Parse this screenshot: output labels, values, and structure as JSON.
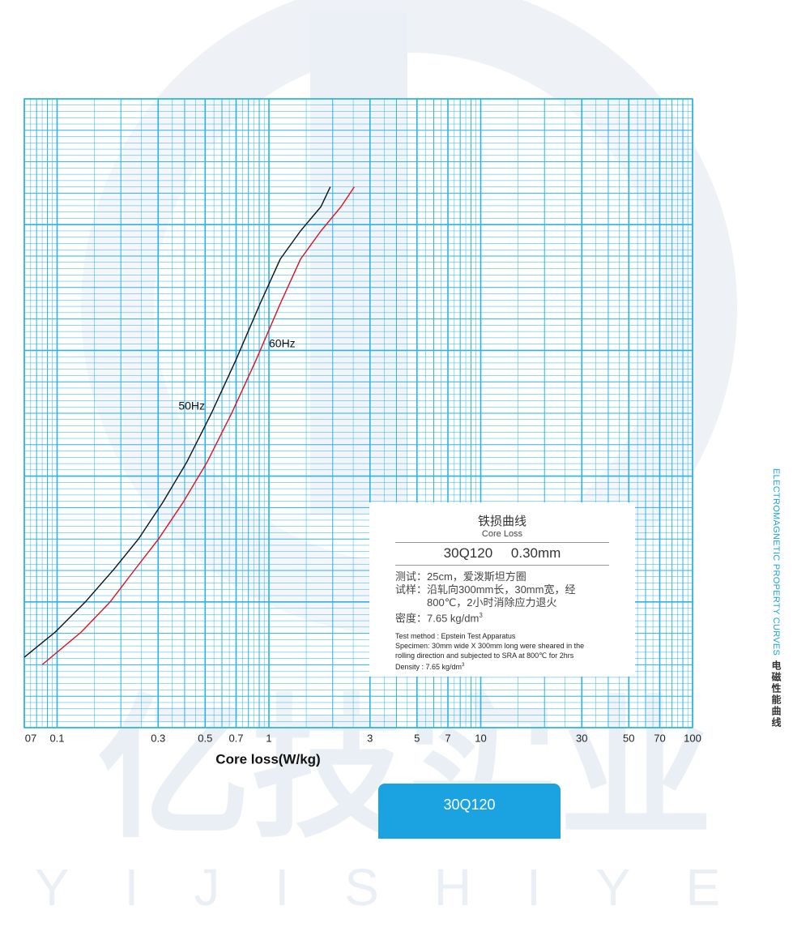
{
  "chart_data": {
    "type": "line",
    "x_label": "Core loss(W/kg)",
    "xscale": "log",
    "xlim": [
      0.07,
      100
    ],
    "xticks": [
      {
        "value": 0.07,
        "label": "07"
      },
      0.1,
      0.3,
      0.5,
      0.7,
      1,
      3,
      5,
      7,
      10,
      30,
      50,
      70,
      100
    ],
    "ylim": [
      0,
      2
    ],
    "grid": true,
    "grid_color": "#2bb3e6",
    "series": [
      {
        "name": "50Hz",
        "color": "#111111",
        "x": [
          0.07,
          0.098,
          0.136,
          0.185,
          0.242,
          0.315,
          0.41,
          0.535,
          0.697,
          0.908,
          1.13,
          1.41,
          1.76,
          1.95
        ],
        "values": [
          0.224,
          0.304,
          0.4,
          0.503,
          0.6,
          0.716,
          0.845,
          1.0,
          1.168,
          1.348,
          1.49,
          1.58,
          1.657,
          1.72
        ]
      },
      {
        "name": "60Hz",
        "color": "#e0101a",
        "x": [
          0.0853,
          0.13,
          0.178,
          0.231,
          0.301,
          0.393,
          0.511,
          0.667,
          0.868,
          1.13,
          1.41,
          1.76,
          2.19,
          2.53
        ],
        "values": [
          0.201,
          0.304,
          0.4,
          0.5,
          0.6,
          0.716,
          0.845,
          1.0,
          1.168,
          1.348,
          1.49,
          1.58,
          1.657,
          1.72
        ]
      }
    ],
    "legend_box": {
      "title_cn": "铁损曲线",
      "title_en": "Core Loss",
      "grade": "30Q120 0.30mm",
      "cn_lines": [
        "测试：25cm，爱泼斯坦方圈",
        "试样：沿轧向300mm长，30mm宽，经",
        "　　　800℃，2小时消除应力退火"
      ],
      "cn_density": {
        "text": "密度：7.65 kg/dm",
        "sup": "3"
      },
      "en_lines": [
        "Test method : Epstein Test Apparatus",
        "Specimen: 30mm wide X 300mm long were sheared in the",
        "rolling direction and subjected to SRA at 800℃ for 2hrs"
      ],
      "en_density": {
        "text": "Density : 7.65 kg/dm",
        "sup": "3"
      }
    }
  },
  "side_title_en": "ELECTROMAGNETIC PROPERTY CURVES",
  "side_title_cn": "电磁性能曲线",
  "button": "30Q120",
  "watermark": {
    "cn": "亿技实业",
    "en": "YIJISHIYE"
  }
}
